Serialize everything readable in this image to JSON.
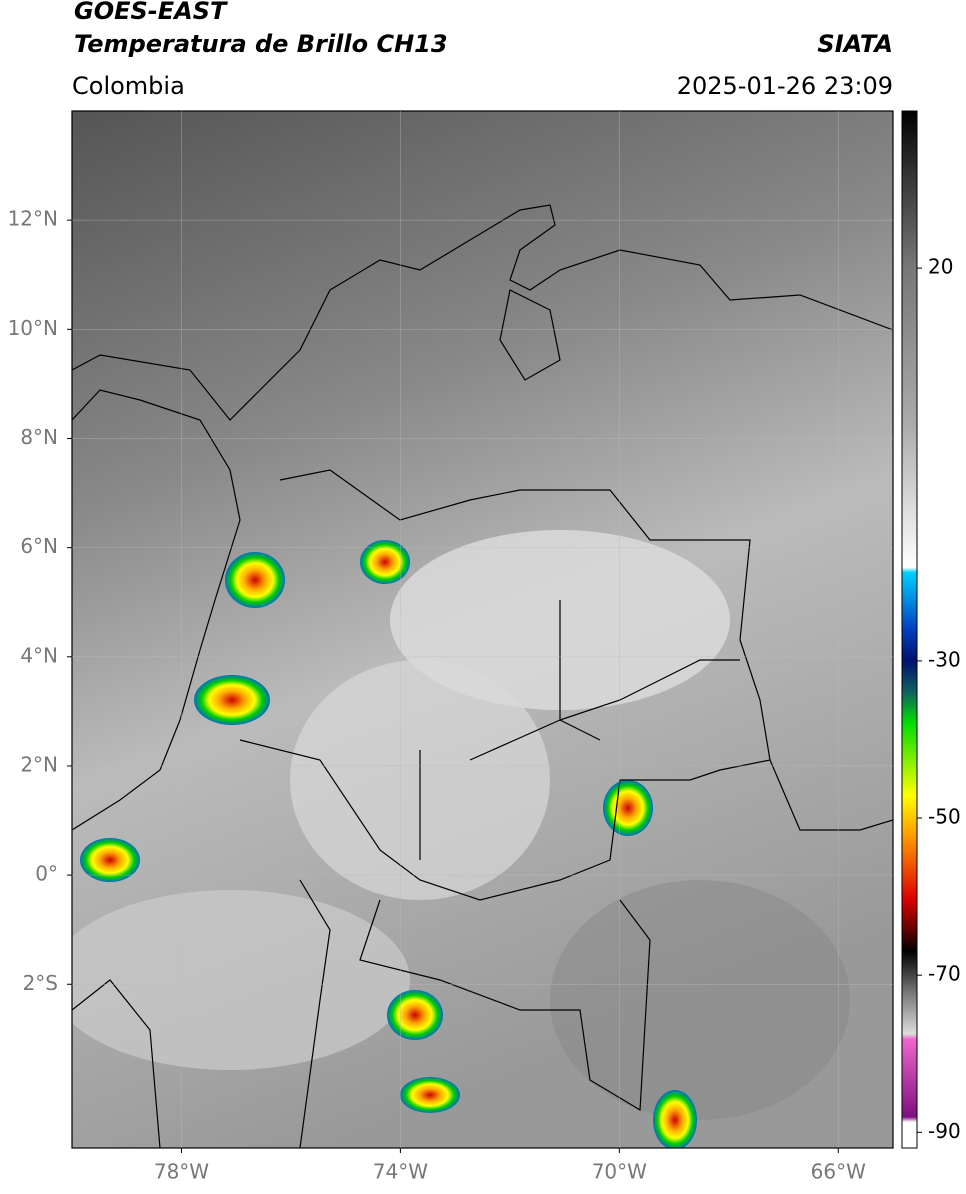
{
  "header": {
    "satellite": "GOES-EAST",
    "product": "Temperatura de Brillo CH13",
    "region": "Colombia",
    "source": "SIATA",
    "datetime": "2025-01-26 23:09"
  },
  "map": {
    "xlim": [
      -80,
      -65
    ],
    "ylim": [
      -5,
      14
    ],
    "xticks": [
      {
        "value": -78,
        "label": "78°W"
      },
      {
        "value": -74,
        "label": "74°W"
      },
      {
        "value": -70,
        "label": "70°W"
      },
      {
        "value": -66,
        "label": "66°W"
      }
    ],
    "yticks": [
      {
        "value": -2,
        "label": "2°S"
      },
      {
        "value": 0,
        "label": "0°"
      },
      {
        "value": 2,
        "label": "2°N"
      },
      {
        "value": 4,
        "label": "4°N"
      },
      {
        "value": 6,
        "label": "6°N"
      },
      {
        "value": 8,
        "label": "8°N"
      },
      {
        "value": 10,
        "label": "10°N"
      },
      {
        "value": 12,
        "label": "12°N"
      }
    ],
    "grid": true
  },
  "colorbar": {
    "lim": [
      -92,
      40
    ],
    "ticks": [
      20,
      -30,
      -50,
      -70,
      -90
    ]
  }
}
